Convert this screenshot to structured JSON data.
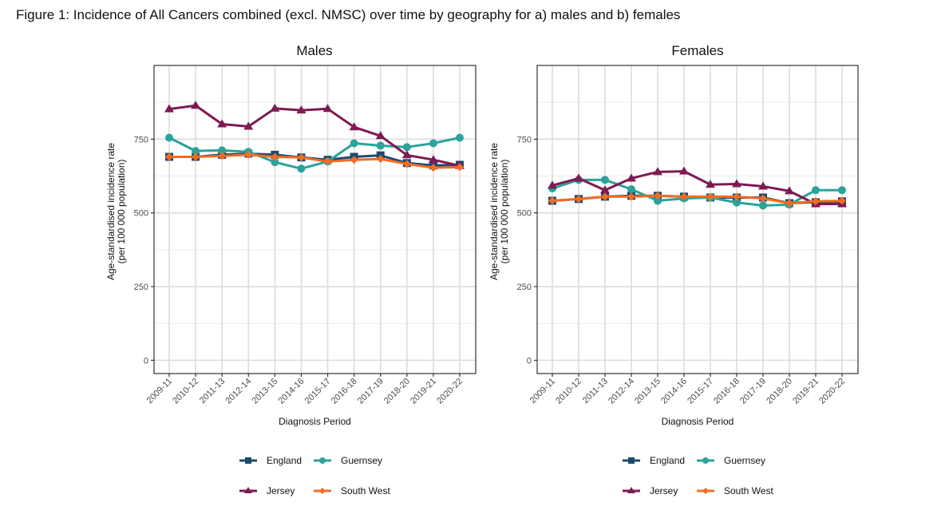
{
  "figure_title": "Figure 1: Incidence of All Cancers combined (excl. NMSC) over time by geography for a) males and b) females",
  "chart_data": [
    {
      "type": "line",
      "title": "Males",
      "xlabel": "Diagnosis Period",
      "ylabel": "Age-standardised incidence rate",
      "ylabel_line2": "(per 100 000 population)",
      "categories": [
        "2009-11",
        "2010-12",
        "2011-13",
        "2012-14",
        "2013-15",
        "2014-16",
        "2015-17",
        "2016-18",
        "2017-19",
        "2018-20",
        "2019-21",
        "2020-22"
      ],
      "yticks": [
        0,
        250,
        500,
        750
      ],
      "ylim": [
        -45,
        1000
      ],
      "grid": true,
      "legend_position": "bottom",
      "series": [
        {
          "name": "England",
          "color": "#1b4a72",
          "marker": "square",
          "values": [
            690,
            690,
            697,
            701,
            697,
            688,
            680,
            690,
            695,
            669,
            661,
            663
          ]
        },
        {
          "name": "Guernsey",
          "color": "#2ba39a",
          "marker": "circle",
          "values": [
            755,
            710,
            712,
            707,
            672,
            650,
            674,
            736,
            728,
            723,
            736,
            755
          ]
        },
        {
          "name": "Jersey",
          "color": "#7d1a52",
          "marker": "triangle",
          "values": [
            852,
            864,
            801,
            793,
            854,
            848,
            853,
            791,
            761,
            696,
            680,
            660
          ]
        },
        {
          "name": "South West",
          "color": "#f26c21",
          "marker": "diamond",
          "values": [
            690,
            690,
            693,
            697,
            690,
            688,
            674,
            680,
            683,
            666,
            653,
            655
          ]
        }
      ]
    },
    {
      "type": "line",
      "title": "Females",
      "xlabel": "Diagnosis Period",
      "ylabel": "Age-standardised incidence rate",
      "ylabel_line2": "(per 100 000 population)",
      "categories": [
        "2009-11",
        "2010-12",
        "2011-13",
        "2012-14",
        "2013-15",
        "2014-16",
        "2015-17",
        "2016-18",
        "2017-19",
        "2018-20",
        "2019-21",
        "2020-22"
      ],
      "yticks": [
        0,
        250,
        500,
        750
      ],
      "ylim": [
        -45,
        1000
      ],
      "grid": true,
      "legend_position": "bottom",
      "series": [
        {
          "name": "England",
          "color": "#1b4a72",
          "marker": "square",
          "values": [
            541,
            547,
            555,
            558,
            558,
            555,
            552,
            552,
            552,
            533,
            536,
            539
          ]
        },
        {
          "name": "Guernsey",
          "color": "#2ba39a",
          "marker": "circle",
          "values": [
            583,
            612,
            612,
            580,
            541,
            549,
            552,
            535,
            525,
            528,
            577,
            577
          ]
        },
        {
          "name": "Jersey",
          "color": "#7d1a52",
          "marker": "triangle",
          "values": [
            593,
            617,
            577,
            617,
            639,
            641,
            596,
            598,
            590,
            574,
            530,
            530
          ]
        },
        {
          "name": "South West",
          "color": "#f26c21",
          "marker": "diamond",
          "values": [
            541,
            547,
            555,
            555,
            558,
            555,
            555,
            555,
            549,
            533,
            539,
            541
          ]
        }
      ]
    }
  ],
  "legend": {
    "items": [
      {
        "name": "England",
        "color": "#1b4a72",
        "marker": "square"
      },
      {
        "name": "Guernsey",
        "color": "#2ba39a",
        "marker": "circle"
      },
      {
        "name": "Jersey",
        "color": "#7d1a52",
        "marker": "triangle"
      },
      {
        "name": "South West",
        "color": "#f26c21",
        "marker": "diamond"
      }
    ]
  }
}
